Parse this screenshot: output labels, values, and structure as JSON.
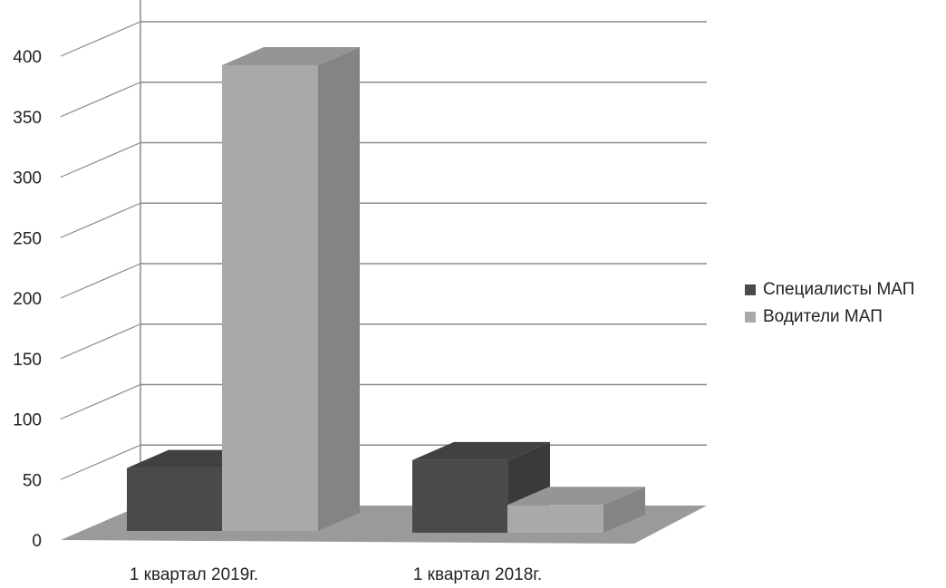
{
  "chart_data": {
    "type": "bar",
    "style": "3d-column",
    "categories": [
      "1 квартал 2019г.",
      "1 квартал 2018г."
    ],
    "series": [
      {
        "name": "Специалисты МАП",
        "values": [
          52,
          60
        ],
        "color": "#4a4a4a"
      },
      {
        "name": "Водители МАП",
        "values": [
          385,
          23
        ],
        "color": "#a9a9a9"
      }
    ],
    "ylim": [
      0,
      400
    ],
    "yticks": [
      0,
      50,
      100,
      150,
      200,
      250,
      300,
      350,
      400
    ],
    "grid": true,
    "legend_position": "right",
    "colors": {
      "gridline": "#8a8a8a",
      "floor": "#9a9a9a",
      "background": "#ffffff"
    }
  }
}
